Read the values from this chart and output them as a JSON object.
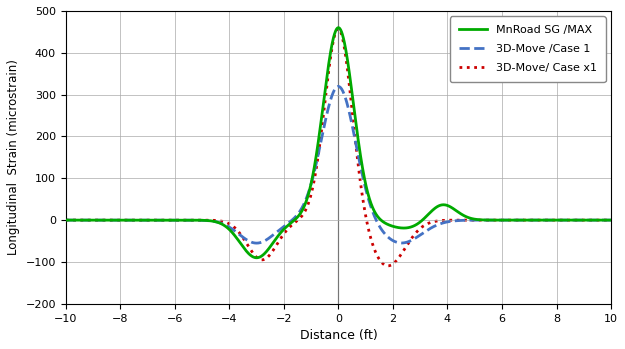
{
  "title": "",
  "xlabel": "Distance (ft)",
  "ylabel": "Longitudinal  Strain (microstrain)",
  "xlim": [
    -10,
    10
  ],
  "ylim": [
    -200,
    500
  ],
  "xticks": [
    -10,
    -8,
    -6,
    -4,
    -2,
    0,
    2,
    4,
    6,
    8,
    10
  ],
  "yticks": [
    -200,
    -100,
    0,
    100,
    200,
    300,
    400,
    500
  ],
  "legend": [
    {
      "label": "MnRoad SG /MAX",
      "color": "#00aa00",
      "linestyle": "solid",
      "linewidth": 2.0
    },
    {
      "label": "3D-Move /Case 1",
      "color": "#4472c4",
      "linestyle": "dashed",
      "linewidth": 2.0
    },
    {
      "label": "3D-Move/ Case x1",
      "color": "#cc0000",
      "linestyle": "dotted",
      "linewidth": 2.0
    }
  ],
  "background_color": "#ffffff",
  "grid_color": "#aaaaaa"
}
